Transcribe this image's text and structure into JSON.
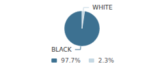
{
  "chart_data": {
    "type": "pie",
    "categories": [
      "BLACK",
      "WHITE"
    ],
    "values": [
      97.7,
      2.3
    ],
    "value_labels": [
      "97.7%",
      "2.3%"
    ],
    "colors": [
      "#3d7191",
      "#c5d8e3"
    ],
    "legend": "bottom"
  }
}
